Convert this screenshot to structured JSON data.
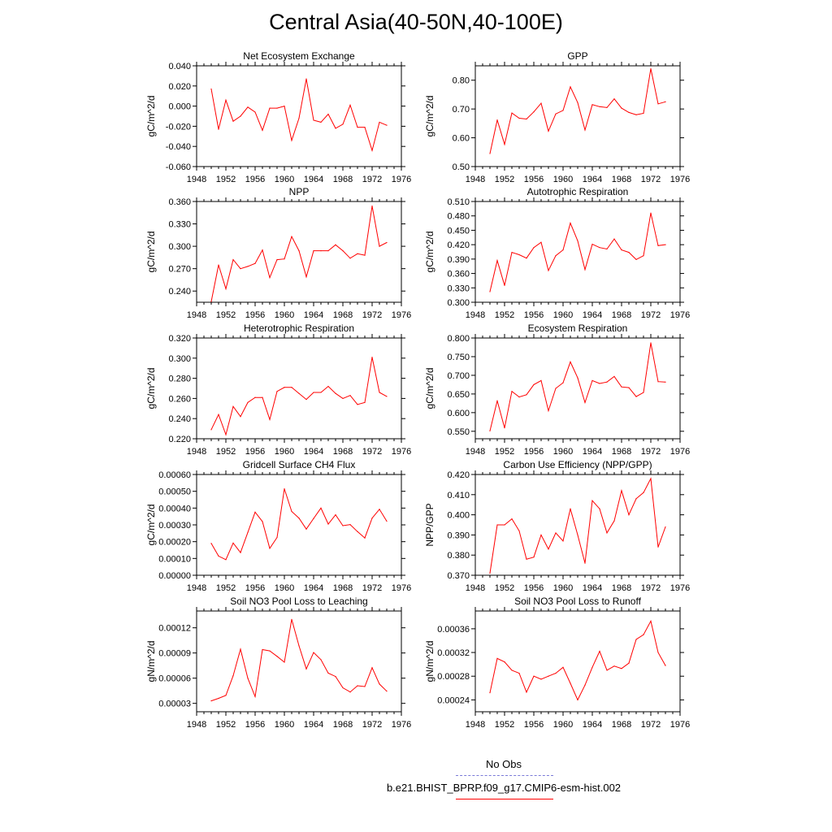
{
  "title": "Central Asia(40-50N,40-100E)",
  "legend": {
    "obs_label": "No Obs",
    "obs_color": "#7a7ad8",
    "model_label": "b.e21.BHIST_BPRP.f09_g17.CMIP6-esm-hist.002",
    "model_color": "#ff0000"
  },
  "chart_data": [
    {
      "type": "line",
      "title": "Net Ecosystem Exchange",
      "ylabel": "gC/m^2/d",
      "xlim": [
        1948,
        1976
      ],
      "xticks": [
        "1948",
        "1952",
        "1956",
        "1960",
        "1964",
        "1968",
        "1972",
        "1976"
      ],
      "ylim": [
        -0.06,
        0.04
      ],
      "yticks": [
        "-0.060",
        "-0.040",
        "-0.020",
        "0.000",
        "0.020",
        "0.040"
      ],
      "x": [
        1950,
        1951,
        1952,
        1953,
        1954,
        1955,
        1956,
        1957,
        1958,
        1959,
        1960,
        1961,
        1962,
        1963,
        1964,
        1965,
        1966,
        1967,
        1968,
        1969,
        1970,
        1971,
        1972,
        1973,
        1974
      ],
      "values": [
        0.017,
        -0.023,
        0.006,
        -0.015,
        -0.01,
        -0.001,
        -0.006,
        -0.024,
        -0.002,
        -0.002,
        0.0,
        -0.034,
        -0.012,
        0.027,
        -0.014,
        -0.016,
        -0.008,
        -0.022,
        -0.018,
        0.001,
        -0.021,
        -0.021,
        -0.044,
        -0.016,
        -0.019
      ]
    },
    {
      "type": "line",
      "title": "GPP",
      "ylabel": "gC/m^2/d",
      "xlim": [
        1948,
        1976
      ],
      "xticks": [
        "1948",
        "1952",
        "1956",
        "1960",
        "1964",
        "1968",
        "1972",
        "1976"
      ],
      "ylim": [
        0.5,
        0.85
      ],
      "yticks": [
        "0.50",
        "0.60",
        "0.70",
        "0.80"
      ],
      "x": [
        1950,
        1951,
        1952,
        1953,
        1954,
        1955,
        1956,
        1957,
        1958,
        1959,
        1960,
        1961,
        1962,
        1963,
        1964,
        1965,
        1966,
        1967,
        1968,
        1969,
        1970,
        1971,
        1972,
        1973,
        1974
      ],
      "values": [
        0.545,
        0.662,
        0.577,
        0.686,
        0.668,
        0.665,
        0.69,
        0.72,
        0.623,
        0.683,
        0.695,
        0.777,
        0.722,
        0.627,
        0.715,
        0.708,
        0.705,
        0.735,
        0.703,
        0.688,
        0.68,
        0.685,
        0.84,
        0.718,
        0.725
      ]
    },
    {
      "type": "line",
      "title": "NPP",
      "ylabel": "gC/m^2/d",
      "xlim": [
        1948,
        1976
      ],
      "xticks": [
        "1948",
        "1952",
        "1956",
        "1960",
        "1964",
        "1968",
        "1972",
        "1976"
      ],
      "ylim": [
        0.225,
        0.36
      ],
      "yticks": [
        "0.240",
        "0.270",
        "0.300",
        "0.330",
        "0.360"
      ],
      "x": [
        1950,
        1951,
        1952,
        1953,
        1954,
        1955,
        1956,
        1957,
        1958,
        1959,
        1960,
        1961,
        1962,
        1963,
        1964,
        1965,
        1966,
        1967,
        1968,
        1969,
        1970,
        1971,
        1972,
        1973,
        1974
      ],
      "values": [
        0.226,
        0.275,
        0.243,
        0.282,
        0.27,
        0.273,
        0.277,
        0.295,
        0.258,
        0.282,
        0.283,
        0.313,
        0.294,
        0.259,
        0.294,
        0.294,
        0.294,
        0.302,
        0.294,
        0.284,
        0.29,
        0.288,
        0.354,
        0.3,
        0.305
      ]
    },
    {
      "type": "line",
      "title": "Autotrophic Respiration",
      "ylabel": "gC/m^2/d",
      "xlim": [
        1948,
        1976
      ],
      "xticks": [
        "1948",
        "1952",
        "1956",
        "1960",
        "1964",
        "1968",
        "1972",
        "1976"
      ],
      "ylim": [
        0.3,
        0.51
      ],
      "yticks": [
        "0.300",
        "0.330",
        "0.360",
        "0.390",
        "0.420",
        "0.450",
        "0.480",
        "0.510"
      ],
      "x": [
        1950,
        1951,
        1952,
        1953,
        1954,
        1955,
        1956,
        1957,
        1958,
        1959,
        1960,
        1961,
        1962,
        1963,
        1964,
        1965,
        1966,
        1967,
        1968,
        1969,
        1970,
        1971,
        1972,
        1973,
        1974
      ],
      "values": [
        0.322,
        0.387,
        0.335,
        0.404,
        0.399,
        0.392,
        0.414,
        0.425,
        0.366,
        0.397,
        0.409,
        0.465,
        0.428,
        0.368,
        0.421,
        0.414,
        0.411,
        0.432,
        0.409,
        0.404,
        0.389,
        0.397,
        0.486,
        0.418,
        0.42
      ]
    },
    {
      "type": "line",
      "title": "Heterotrophic Respiration",
      "ylabel": "gC/m^2/d",
      "xlim": [
        1948,
        1976
      ],
      "xticks": [
        "1948",
        "1952",
        "1956",
        "1960",
        "1964",
        "1968",
        "1972",
        "1976"
      ],
      "ylim": [
        0.22,
        0.32
      ],
      "yticks": [
        "0.220",
        "0.240",
        "0.260",
        "0.280",
        "0.300",
        "0.320"
      ],
      "x": [
        1950,
        1951,
        1952,
        1953,
        1954,
        1955,
        1956,
        1957,
        1958,
        1959,
        1960,
        1961,
        1962,
        1963,
        1964,
        1965,
        1966,
        1967,
        1968,
        1969,
        1970,
        1971,
        1972,
        1973,
        1974
      ],
      "values": [
        0.229,
        0.244,
        0.224,
        0.252,
        0.242,
        0.256,
        0.261,
        0.261,
        0.239,
        0.267,
        0.271,
        0.271,
        0.265,
        0.259,
        0.266,
        0.266,
        0.272,
        0.265,
        0.26,
        0.263,
        0.254,
        0.256,
        0.301,
        0.266,
        0.262
      ]
    },
    {
      "type": "line",
      "title": "Ecosystem Respiration",
      "ylabel": "gC/m^2/d",
      "xlim": [
        1948,
        1976
      ],
      "xticks": [
        "1948",
        "1952",
        "1956",
        "1960",
        "1964",
        "1968",
        "1972",
        "1976"
      ],
      "ylim": [
        0.53,
        0.8
      ],
      "yticks": [
        "0.550",
        "0.600",
        "0.650",
        "0.700",
        "0.750",
        "0.800"
      ],
      "x": [
        1950,
        1951,
        1952,
        1953,
        1954,
        1955,
        1956,
        1957,
        1958,
        1959,
        1960,
        1961,
        1962,
        1963,
        1964,
        1965,
        1966,
        1967,
        1968,
        1969,
        1970,
        1971,
        1972,
        1973,
        1974
      ],
      "values": [
        0.551,
        0.632,
        0.559,
        0.657,
        0.642,
        0.648,
        0.675,
        0.686,
        0.605,
        0.665,
        0.68,
        0.736,
        0.693,
        0.627,
        0.686,
        0.678,
        0.682,
        0.697,
        0.669,
        0.667,
        0.643,
        0.654,
        0.787,
        0.683,
        0.682
      ]
    },
    {
      "type": "line",
      "title": "Gridcell Surface CH4 Flux",
      "ylabel": "gC/m^2/d",
      "xlim": [
        1948,
        1976
      ],
      "xticks": [
        "1948",
        "1952",
        "1956",
        "1960",
        "1964",
        "1968",
        "1972",
        "1976"
      ],
      "ylim": [
        0,
        0.0006
      ],
      "yticks": [
        "0.00000",
        "0.00010",
        "0.00020",
        "0.00030",
        "0.00040",
        "0.00050",
        "0.00060"
      ],
      "x": [
        1950,
        1951,
        1952,
        1953,
        1954,
        1955,
        1956,
        1957,
        1958,
        1959,
        1960,
        1961,
        1962,
        1963,
        1964,
        1965,
        1966,
        1967,
        1968,
        1969,
        1970,
        1971,
        1972,
        1973,
        1974
      ],
      "values": [
        0.00019,
        0.000114,
        9.3e-05,
        0.000192,
        0.000135,
        0.000255,
        0.000376,
        0.00032,
        0.00016,
        0.000225,
        0.000515,
        0.00038,
        0.00034,
        0.000275,
        0.000338,
        0.0004,
        0.000305,
        0.00036,
        0.000295,
        0.000302,
        0.00026,
        0.000222,
        0.00034,
        0.000393,
        0.000322
      ]
    },
    {
      "type": "line",
      "title": "Carbon Use Efficiency (NPP/GPP)",
      "ylabel": "NPP/GPP",
      "xlim": [
        1948,
        1976
      ],
      "xticks": [
        "1948",
        "1952",
        "1956",
        "1960",
        "1964",
        "1968",
        "1972",
        "1976"
      ],
      "ylim": [
        0.37,
        0.42
      ],
      "yticks": [
        "0.370",
        "0.380",
        "0.390",
        "0.400",
        "0.410",
        "0.420"
      ],
      "x": [
        1950,
        1951,
        1952,
        1953,
        1954,
        1955,
        1956,
        1957,
        1958,
        1959,
        1960,
        1961,
        1962,
        1963,
        1964,
        1965,
        1966,
        1967,
        1968,
        1969,
        1970,
        1971,
        1972,
        1973,
        1974
      ],
      "values": [
        0.371,
        0.395,
        0.395,
        0.398,
        0.392,
        0.378,
        0.379,
        0.39,
        0.383,
        0.391,
        0.387,
        0.403,
        0.39,
        0.376,
        0.407,
        0.403,
        0.391,
        0.397,
        0.412,
        0.4,
        0.408,
        0.411,
        0.418,
        0.384,
        0.394
      ]
    },
    {
      "type": "line",
      "title": "Soil NO3 Pool Loss to Leaching",
      "ylabel": "gN/m^2/d",
      "xlim": [
        1948,
        1976
      ],
      "xticks": [
        "1948",
        "1952",
        "1956",
        "1960",
        "1964",
        "1968",
        "1972",
        "1976"
      ],
      "ylim": [
        2e-05,
        0.00014
      ],
      "yticks": [
        "0.00003",
        "0.00006",
        "0.00009",
        "0.00012"
      ],
      "x": [
        1950,
        1951,
        1952,
        1953,
        1954,
        1955,
        1956,
        1957,
        1958,
        1959,
        1960,
        1961,
        1962,
        1963,
        1964,
        1965,
        1966,
        1967,
        1968,
        1969,
        1970,
        1971,
        1972,
        1973,
        1974
      ],
      "values": [
        3.3e-05,
        3.6e-05,
        3.95e-05,
        6.3e-05,
        9.45e-05,
        6e-05,
        3.8e-05,
        9.4e-05,
        9.25e-05,
        8.6e-05,
        7.9e-05,
        0.00013,
        9.85e-05,
        7.1e-05,
        9.05e-05,
        8.2e-05,
        6.6e-05,
        6.2e-05,
        4.85e-05,
        4.35e-05,
        5.1e-05,
        5e-05,
        7.25e-05,
        5.3e-05,
        4.45e-05
      ]
    },
    {
      "type": "line",
      "title": "Soil NO3 Pool Loss to Runoff",
      "ylabel": "gN/m^2/d",
      "xlim": [
        1948,
        1976
      ],
      "xticks": [
        "1948",
        "1952",
        "1956",
        "1960",
        "1964",
        "1968",
        "1972",
        "1976"
      ],
      "ylim": [
        0.00022,
        0.00039
      ],
      "yticks": [
        "0.00024",
        "0.00028",
        "0.00032",
        "0.00036"
      ],
      "x": [
        1950,
        1951,
        1952,
        1953,
        1954,
        1955,
        1956,
        1957,
        1958,
        1959,
        1960,
        1961,
        1962,
        1963,
        1964,
        1965,
        1966,
        1967,
        1968,
        1969,
        1970,
        1971,
        1972,
        1973,
        1974
      ],
      "values": [
        0.000252,
        0.00031,
        0.000304,
        0.00029,
        0.000285,
        0.000253,
        0.00028,
        0.000275,
        0.00028,
        0.000285,
        0.000295,
        0.000268,
        0.00024,
        0.000265,
        0.000295,
        0.000322,
        0.00029,
        0.000297,
        0.000293,
        0.000302,
        0.000342,
        0.00035,
        0.000373,
        0.00032,
        0.000298
      ]
    }
  ]
}
